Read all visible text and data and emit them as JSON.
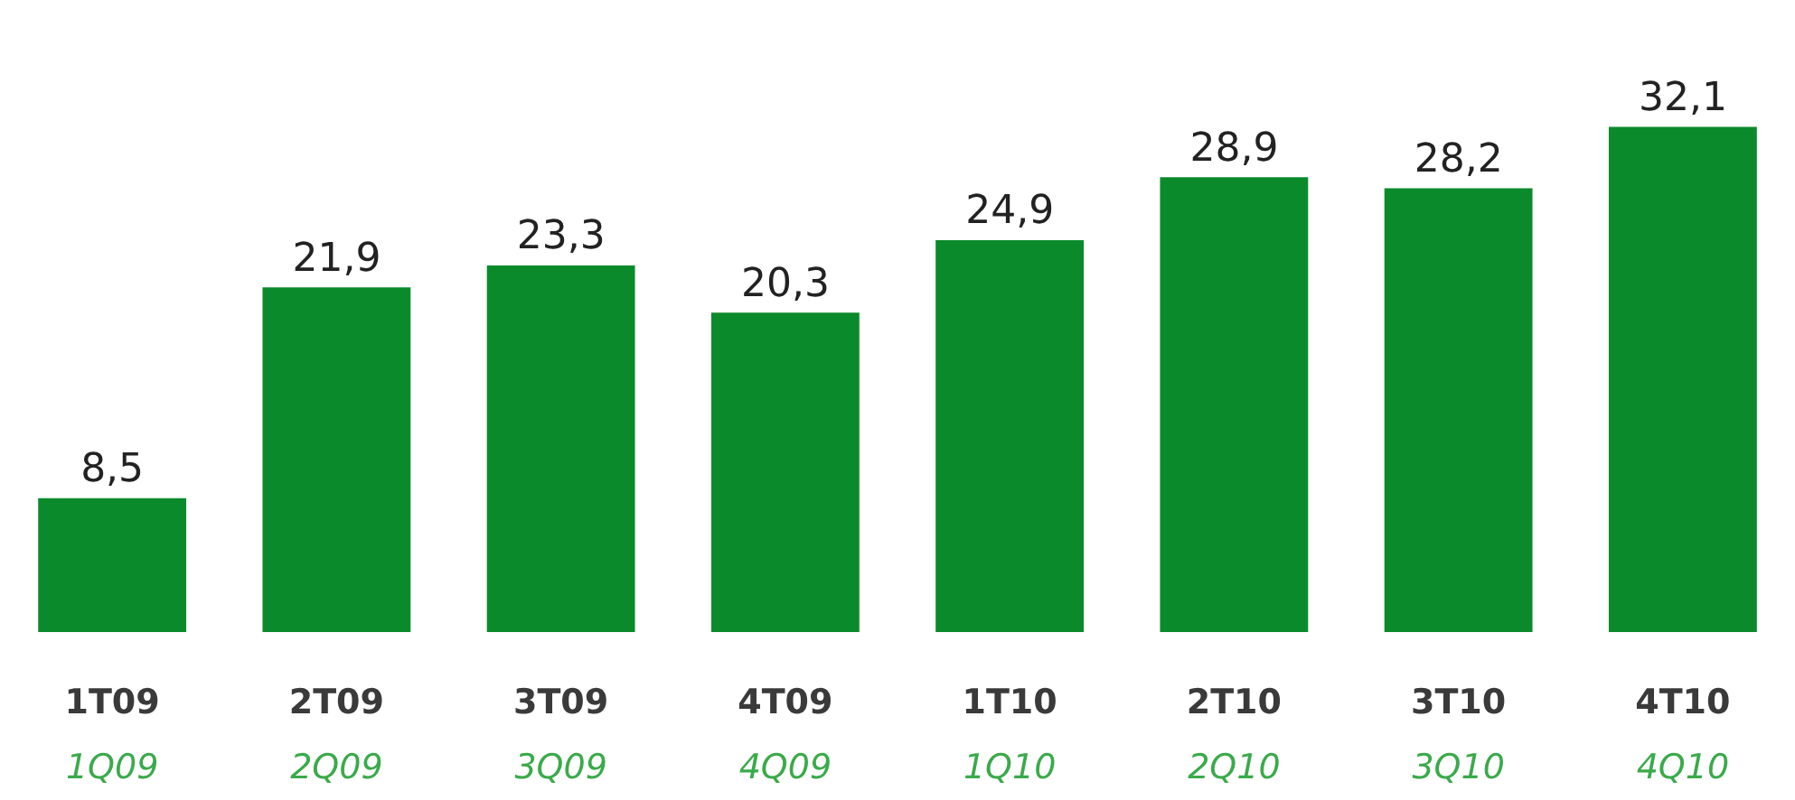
{
  "chart_data": {
    "type": "bar",
    "categories": [
      "1T09\n1Q09",
      "2T09\n2Q09",
      "3T09\n3Q09",
      "4T09\n4Q09",
      "1T10\n1Q10",
      "2T10\n2Q10",
      "3T10\n3Q10",
      "4T10\n4Q10"
    ],
    "values": [
      8.5,
      21.9,
      23.3,
      20.3,
      24.9,
      28.9,
      28.2,
      32.1
    ],
    "value_labels": [
      "8,5",
      "21,9",
      "23,3",
      "20,3",
      "24,9",
      "28,9",
      "28,2",
      "32,1"
    ],
    "color": "#0b8a2c",
    "grid": false,
    "legend": false,
    "tick_labels": "x"
  }
}
